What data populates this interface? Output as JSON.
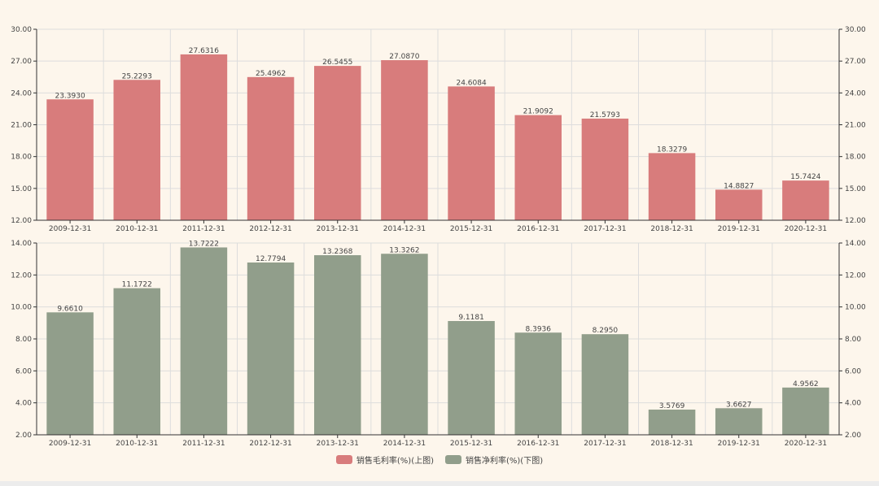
{
  "chart_data": [
    {
      "type": "bar",
      "categories": [
        "2009-12-31",
        "2010-12-31",
        "2011-12-31",
        "2012-12-31",
        "2013-12-31",
        "2014-12-31",
        "2015-12-31",
        "2016-12-31",
        "2017-12-31",
        "2018-12-31",
        "2019-12-31",
        "2020-12-31"
      ],
      "series": [
        {
          "name": "销售毛利率(%)(上图)",
          "values": [
            23.393,
            25.2293,
            27.6316,
            25.4962,
            26.5455,
            27.087,
            24.6084,
            21.9092,
            21.5793,
            18.3279,
            14.8827,
            15.7424
          ],
          "labels": [
            "23.3930",
            "25.2293",
            "27.6316",
            "25.4962",
            "26.5455",
            "27.0870",
            "24.6084",
            "21.9092",
            "21.5793",
            "18.3279",
            "14.8827",
            "15.7424"
          ],
          "color": "#d87c7c"
        }
      ],
      "ylim": [
        12,
        30
      ],
      "yticks": [
        "12.00",
        "15.00",
        "18.00",
        "21.00",
        "24.00",
        "27.00",
        "30.00"
      ],
      "grid": true
    },
    {
      "type": "bar",
      "categories": [
        "2009-12-31",
        "2010-12-31",
        "2011-12-31",
        "2012-12-31",
        "2013-12-31",
        "2014-12-31",
        "2015-12-31",
        "2016-12-31",
        "2017-12-31",
        "2018-12-31",
        "2019-12-31",
        "2020-12-31"
      ],
      "series": [
        {
          "name": "销售净利率(%)(下图)",
          "values": [
            9.661,
            11.1722,
            13.7222,
            12.7794,
            13.2368,
            13.3262,
            9.1181,
            8.3936,
            8.295,
            3.5769,
            3.6627,
            4.9562
          ],
          "labels": [
            "9.6610",
            "11.1722",
            "13.7222",
            "12.7794",
            "13.2368",
            "13.3262",
            "9.1181",
            "8.3936",
            "8.2950",
            "3.5769",
            "3.6627",
            "4.9562"
          ],
          "color": "#919e8b"
        }
      ],
      "ylim": [
        2,
        14
      ],
      "yticks": [
        "2.00",
        "4.00",
        "6.00",
        "8.00",
        "10.00",
        "12.00",
        "14.00"
      ],
      "grid": true
    }
  ],
  "legend": {
    "position": "bottom-center",
    "items": [
      "销售毛利率(%)(上图)",
      "销售净利率(%)(下图)"
    ]
  }
}
